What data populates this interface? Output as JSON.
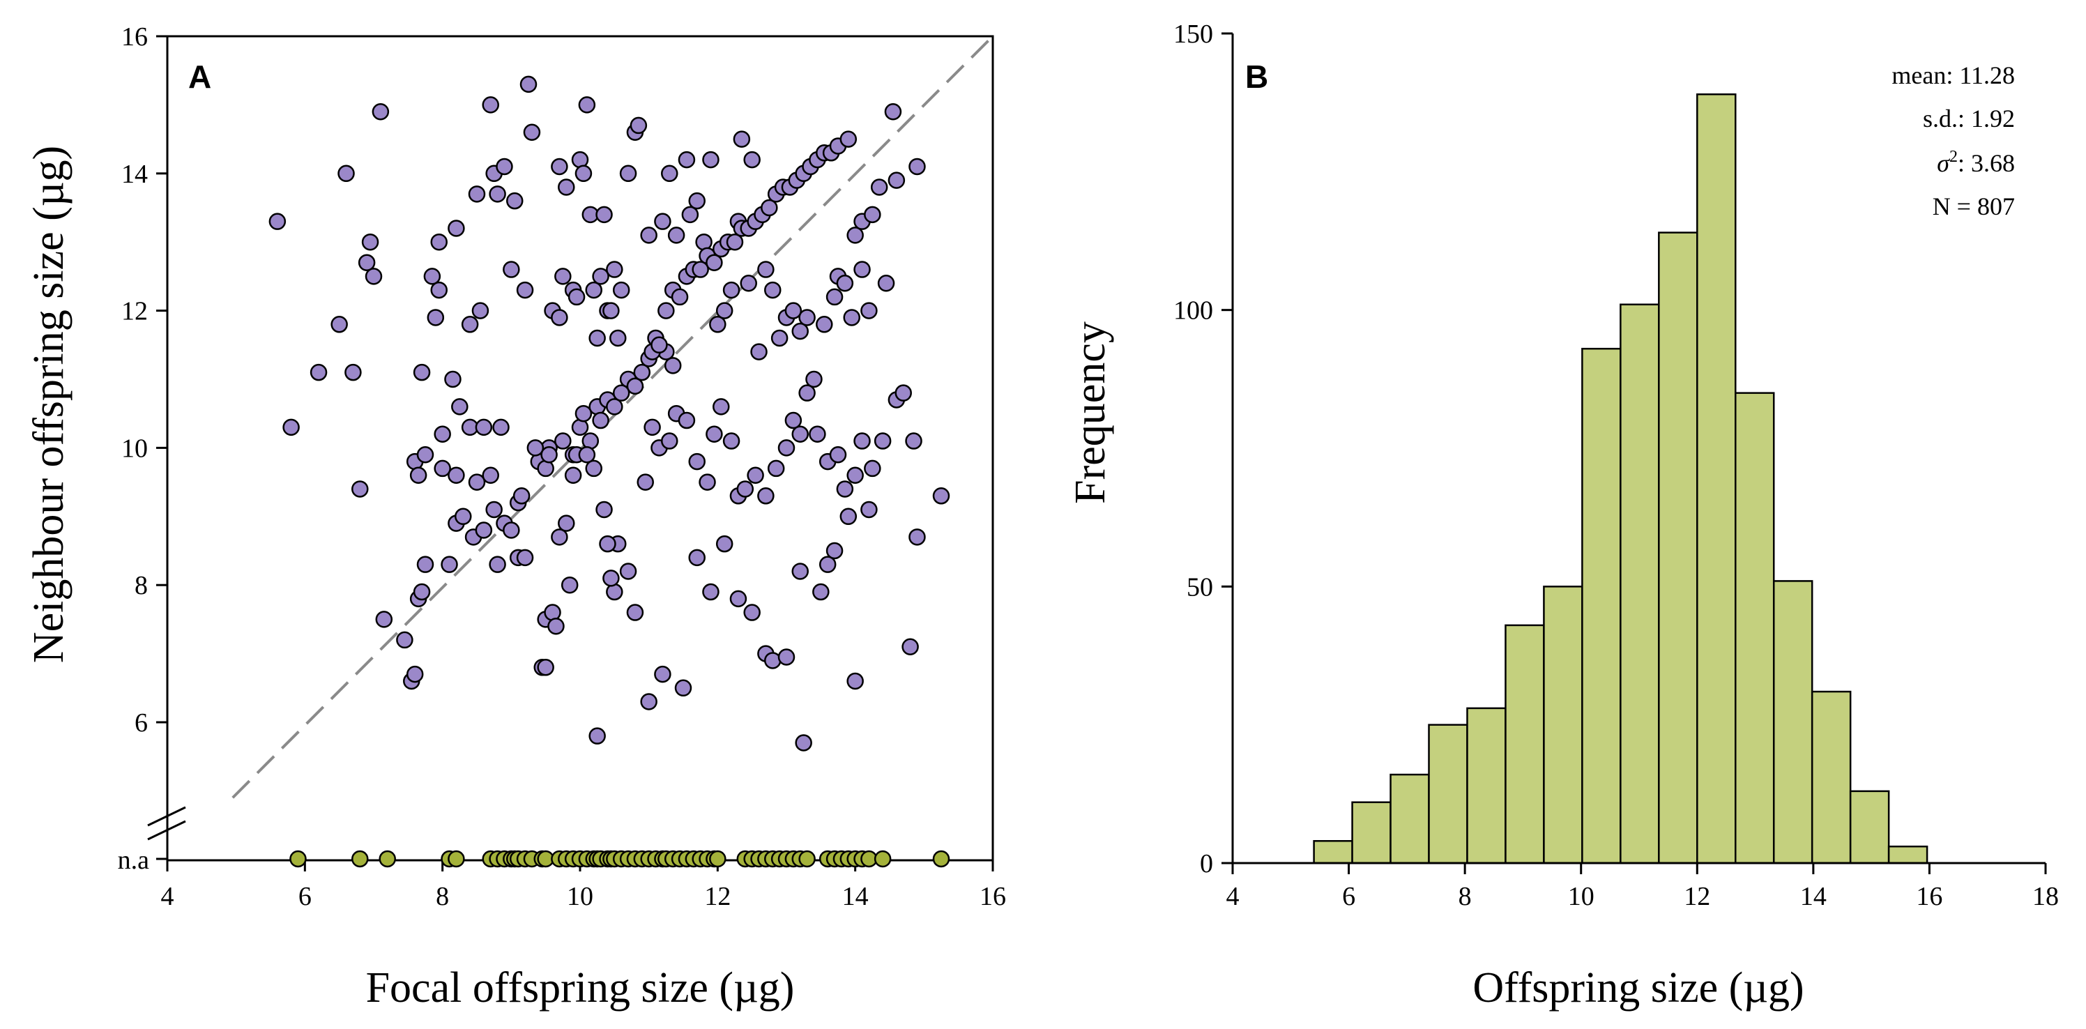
{
  "chart_data": [
    {
      "type": "scatter",
      "panel_label": "A",
      "xlabel": "Focal offspring size (µg)",
      "ylabel": "Neighbour offspring size (µg)",
      "xlim": [
        4,
        16
      ],
      "ylim": [
        4.5,
        16
      ],
      "xticks": [
        "4",
        "6",
        "8",
        "10",
        "12",
        "14",
        "16"
      ],
      "yticks": [
        "6",
        "8",
        "10",
        "12",
        "14",
        "16"
      ],
      "na_label": "n.a",
      "reference_line": "y = x (dashed grey)",
      "colors": {
        "points": "#9b88c9",
        "na_points": "#a4b23a",
        "reference_line": "#8a8a8a"
      },
      "points": [
        [
          5.6,
          13.3
        ],
        [
          5.8,
          10.3
        ],
        [
          6.2,
          11.1
        ],
        [
          6.5,
          11.8
        ],
        [
          6.6,
          14.0
        ],
        [
          6.7,
          11.1
        ],
        [
          6.8,
          9.4
        ],
        [
          6.9,
          12.7
        ],
        [
          6.95,
          13.0
        ],
        [
          7.0,
          12.5
        ],
        [
          7.1,
          14.9
        ],
        [
          7.6,
          9.8
        ],
        [
          7.65,
          9.6
        ],
        [
          7.7,
          11.1
        ],
        [
          7.85,
          12.5
        ],
        [
          7.9,
          11.9
        ],
        [
          7.95,
          12.3
        ],
        [
          7.95,
          13.0
        ],
        [
          8.0,
          9.7
        ],
        [
          8.1,
          8.3
        ],
        [
          8.15,
          11.0
        ],
        [
          8.2,
          13.2
        ],
        [
          8.25,
          10.6
        ],
        [
          8.4,
          10.3
        ],
        [
          8.4,
          11.8
        ],
        [
          8.5,
          13.7
        ],
        [
          8.55,
          12.0
        ],
        [
          8.6,
          10.3
        ],
        [
          8.7,
          15.0
        ],
        [
          8.75,
          14.0
        ],
        [
          8.8,
          13.7
        ],
        [
          8.9,
          14.1
        ],
        [
          9.0,
          12.6
        ],
        [
          9.05,
          13.6
        ],
        [
          9.1,
          9.2
        ],
        [
          9.2,
          12.3
        ],
        [
          9.25,
          15.3
        ],
        [
          9.3,
          14.6
        ],
        [
          9.4,
          9.8
        ],
        [
          9.5,
          9.7
        ],
        [
          9.55,
          10.0
        ],
        [
          9.6,
          12.0
        ],
        [
          9.7,
          11.9
        ],
        [
          9.7,
          14.1
        ],
        [
          9.75,
          12.5
        ],
        [
          9.8,
          13.8
        ],
        [
          9.85,
          8.0
        ],
        [
          9.9,
          12.3
        ],
        [
          9.95,
          12.2
        ],
        [
          10.0,
          14.2
        ],
        [
          10.05,
          14.0
        ],
        [
          10.1,
          15.0
        ],
        [
          10.15,
          13.4
        ],
        [
          10.2,
          12.3
        ],
        [
          10.25,
          11.6
        ],
        [
          10.3,
          12.5
        ],
        [
          10.35,
          13.4
        ],
        [
          10.4,
          12.0
        ],
        [
          10.45,
          12.0
        ],
        [
          10.5,
          12.6
        ],
        [
          10.55,
          11.6
        ],
        [
          10.6,
          12.3
        ],
        [
          10.7,
          14.0
        ],
        [
          10.8,
          14.6
        ],
        [
          10.85,
          14.7
        ],
        [
          11.0,
          13.1
        ],
        [
          11.1,
          11.6
        ],
        [
          11.2,
          13.3
        ],
        [
          11.25,
          11.4
        ],
        [
          11.3,
          14.0
        ],
        [
          11.35,
          11.2
        ],
        [
          11.4,
          13.1
        ],
        [
          11.55,
          14.2
        ],
        [
          11.6,
          13.4
        ],
        [
          11.7,
          13.6
        ],
        [
          11.8,
          13.0
        ],
        [
          11.9,
          14.2
        ],
        [
          12.0,
          11.8
        ],
        [
          12.1,
          12.0
        ],
        [
          12.2,
          12.3
        ],
        [
          12.3,
          13.3
        ],
        [
          12.35,
          14.5
        ],
        [
          12.45,
          12.4
        ],
        [
          12.5,
          14.2
        ],
        [
          12.6,
          11.4
        ],
        [
          12.7,
          12.6
        ],
        [
          12.8,
          12.3
        ],
        [
          12.9,
          11.6
        ],
        [
          13.0,
          11.9
        ],
        [
          13.1,
          12.0
        ],
        [
          13.2,
          11.7
        ],
        [
          13.3,
          11.9
        ],
        [
          13.4,
          11.0
        ],
        [
          13.55,
          11.8
        ],
        [
          13.7,
          12.2
        ],
        [
          13.75,
          12.5
        ],
        [
          13.85,
          12.4
        ],
        [
          13.95,
          11.9
        ],
        [
          14.1,
          12.6
        ],
        [
          14.2,
          12.0
        ],
        [
          14.45,
          12.4
        ],
        [
          14.6,
          13.9
        ],
        [
          14.9,
          14.1
        ],
        [
          7.15,
          7.5
        ],
        [
          7.45,
          7.2
        ],
        [
          7.55,
          6.6
        ],
        [
          7.6,
          6.7
        ],
        [
          7.65,
          7.8
        ],
        [
          7.7,
          7.9
        ],
        [
          7.75,
          8.3
        ],
        [
          8.2,
          8.9
        ],
        [
          8.3,
          9.0
        ],
        [
          8.45,
          8.7
        ],
        [
          8.6,
          8.8
        ],
        [
          8.75,
          9.1
        ],
        [
          8.8,
          8.3
        ],
        [
          8.9,
          8.9
        ],
        [
          9.0,
          8.8
        ],
        [
          9.1,
          8.4
        ],
        [
          9.2,
          8.4
        ],
        [
          9.45,
          6.8
        ],
        [
          9.5,
          7.5
        ],
        [
          9.6,
          7.6
        ],
        [
          9.65,
          7.4
        ],
        [
          9.7,
          8.7
        ],
        [
          9.8,
          8.9
        ],
        [
          9.9,
          9.9
        ],
        [
          9.95,
          9.9
        ],
        [
          10.0,
          10.3
        ],
        [
          10.05,
          10.5
        ],
        [
          10.15,
          10.1
        ],
        [
          10.25,
          10.6
        ],
        [
          10.3,
          10.4
        ],
        [
          10.4,
          10.7
        ],
        [
          10.5,
          10.6
        ],
        [
          10.6,
          10.8
        ],
        [
          10.7,
          11.0
        ],
        [
          10.8,
          10.9
        ],
        [
          10.9,
          11.1
        ],
        [
          11.0,
          11.3
        ],
        [
          11.05,
          11.4
        ],
        [
          11.15,
          11.5
        ],
        [
          11.25,
          12.0
        ],
        [
          11.35,
          12.3
        ],
        [
          11.45,
          12.2
        ],
        [
          11.55,
          12.5
        ],
        [
          11.65,
          12.6
        ],
        [
          11.75,
          12.6
        ],
        [
          11.85,
          12.8
        ],
        [
          11.95,
          12.7
        ],
        [
          12.05,
          12.9
        ],
        [
          12.15,
          13.0
        ],
        [
          12.25,
          13.0
        ],
        [
          12.35,
          13.2
        ],
        [
          12.45,
          13.2
        ],
        [
          12.55,
          13.3
        ],
        [
          12.65,
          13.4
        ],
        [
          12.75,
          13.5
        ],
        [
          12.85,
          13.7
        ],
        [
          12.95,
          13.8
        ],
        [
          13.05,
          13.8
        ],
        [
          13.15,
          13.9
        ],
        [
          13.25,
          14.0
        ],
        [
          13.35,
          14.1
        ],
        [
          13.45,
          14.2
        ],
        [
          13.55,
          14.3
        ],
        [
          13.65,
          14.3
        ],
        [
          13.75,
          14.4
        ],
        [
          13.9,
          14.5
        ],
        [
          14.0,
          13.1
        ],
        [
          14.1,
          13.3
        ],
        [
          14.25,
          13.4
        ],
        [
          14.35,
          13.8
        ],
        [
          14.55,
          14.9
        ],
        [
          7.75,
          9.9
        ],
        [
          8.0,
          10.2
        ],
        [
          8.2,
          9.6
        ],
        [
          8.5,
          9.5
        ],
        [
          8.7,
          9.6
        ],
        [
          8.85,
          10.3
        ],
        [
          9.15,
          9.3
        ],
        [
          9.35,
          10.0
        ],
        [
          9.55,
          9.9
        ],
        [
          9.75,
          10.1
        ],
        [
          9.9,
          9.6
        ],
        [
          10.1,
          9.9
        ],
        [
          10.2,
          9.7
        ],
        [
          10.35,
          9.1
        ],
        [
          10.55,
          8.6
        ],
        [
          10.7,
          8.2
        ],
        [
          10.95,
          9.5
        ],
        [
          11.05,
          10.3
        ],
        [
          11.15,
          10.0
        ],
        [
          11.3,
          10.1
        ],
        [
          11.4,
          10.5
        ],
        [
          11.55,
          10.4
        ],
        [
          11.7,
          9.8
        ],
        [
          11.85,
          9.5
        ],
        [
          11.95,
          10.2
        ],
        [
          12.05,
          10.6
        ],
        [
          12.2,
          10.1
        ],
        [
          12.3,
          9.3
        ],
        [
          12.4,
          9.4
        ],
        [
          12.55,
          9.6
        ],
        [
          12.7,
          9.3
        ],
        [
          12.85,
          9.7
        ],
        [
          13.0,
          10.0
        ],
        [
          13.1,
          10.4
        ],
        [
          13.2,
          10.2
        ],
        [
          13.3,
          10.8
        ],
        [
          13.45,
          10.2
        ],
        [
          13.6,
          9.8
        ],
        [
          13.75,
          9.9
        ],
        [
          13.85,
          9.4
        ],
        [
          14.0,
          9.6
        ],
        [
          14.1,
          10.1
        ],
        [
          14.25,
          9.7
        ],
        [
          14.4,
          10.1
        ],
        [
          14.6,
          10.7
        ],
        [
          14.7,
          10.8
        ],
        [
          14.85,
          10.1
        ],
        [
          10.5,
          7.9
        ],
        [
          10.8,
          7.6
        ],
        [
          11.0,
          6.3
        ],
        [
          11.2,
          6.7
        ],
        [
          11.5,
          6.5
        ],
        [
          11.7,
          8.4
        ],
        [
          11.9,
          7.9
        ],
        [
          12.1,
          8.6
        ],
        [
          12.3,
          7.8
        ],
        [
          12.5,
          7.6
        ],
        [
          12.7,
          7.0
        ],
        [
          12.8,
          6.9
        ],
        [
          13.0,
          6.95
        ],
        [
          13.2,
          8.2
        ],
        [
          13.25,
          5.7
        ],
        [
          13.5,
          7.9
        ],
        [
          13.6,
          8.3
        ],
        [
          13.7,
          8.5
        ],
        [
          13.9,
          9.0
        ],
        [
          14.0,
          6.6
        ],
        [
          14.2,
          9.1
        ],
        [
          14.8,
          7.1
        ],
        [
          14.9,
          8.7
        ],
        [
          15.25,
          9.3
        ],
        [
          10.25,
          5.8
        ],
        [
          10.4,
          8.6
        ],
        [
          10.45,
          8.1
        ],
        [
          9.5,
          6.8
        ]
      ],
      "na_x_values": [
        5.9,
        6.8,
        7.2,
        8.1,
        8.2,
        8.7,
        8.8,
        8.9,
        9.0,
        9.05,
        9.1,
        9.2,
        9.3,
        9.45,
        9.5,
        9.7,
        9.8,
        9.9,
        10.0,
        10.1,
        10.2,
        10.25,
        10.3,
        10.4,
        10.45,
        10.5,
        10.6,
        10.7,
        10.8,
        10.9,
        11.0,
        11.1,
        11.2,
        11.25,
        11.35,
        11.45,
        11.55,
        11.65,
        11.75,
        11.85,
        11.95,
        12.0,
        12.4,
        12.5,
        12.6,
        12.7,
        12.8,
        12.9,
        13.0,
        13.1,
        13.2,
        13.3,
        13.6,
        13.7,
        13.8,
        13.9,
        14.0,
        14.1,
        14.2,
        14.4,
        15.25
      ]
    },
    {
      "type": "bar",
      "panel_label": "B",
      "xlabel": "Offspring size (µg)",
      "ylabel": "Frequency",
      "xlim": [
        4,
        18
      ],
      "ylim": [
        0,
        150
      ],
      "xticks": [
        "4",
        "6",
        "8",
        "10",
        "12",
        "14",
        "16",
        "18"
      ],
      "yticks": [
        "0",
        "50",
        "100",
        "150"
      ],
      "bin_width": 0.66,
      "bin_start": 5.4,
      "values": [
        4,
        11,
        16,
        25,
        28,
        43,
        50,
        93,
        101,
        114,
        139,
        85,
        51,
        31,
        13,
        3
      ],
      "bar_color": "#c4d07e",
      "stats": {
        "mean": "mean: 11.28",
        "sd": "s.d.: 1.92",
        "variance_prefix": "σ",
        "variance_suffix": ": 3.68",
        "n": "N = 807"
      }
    }
  ]
}
